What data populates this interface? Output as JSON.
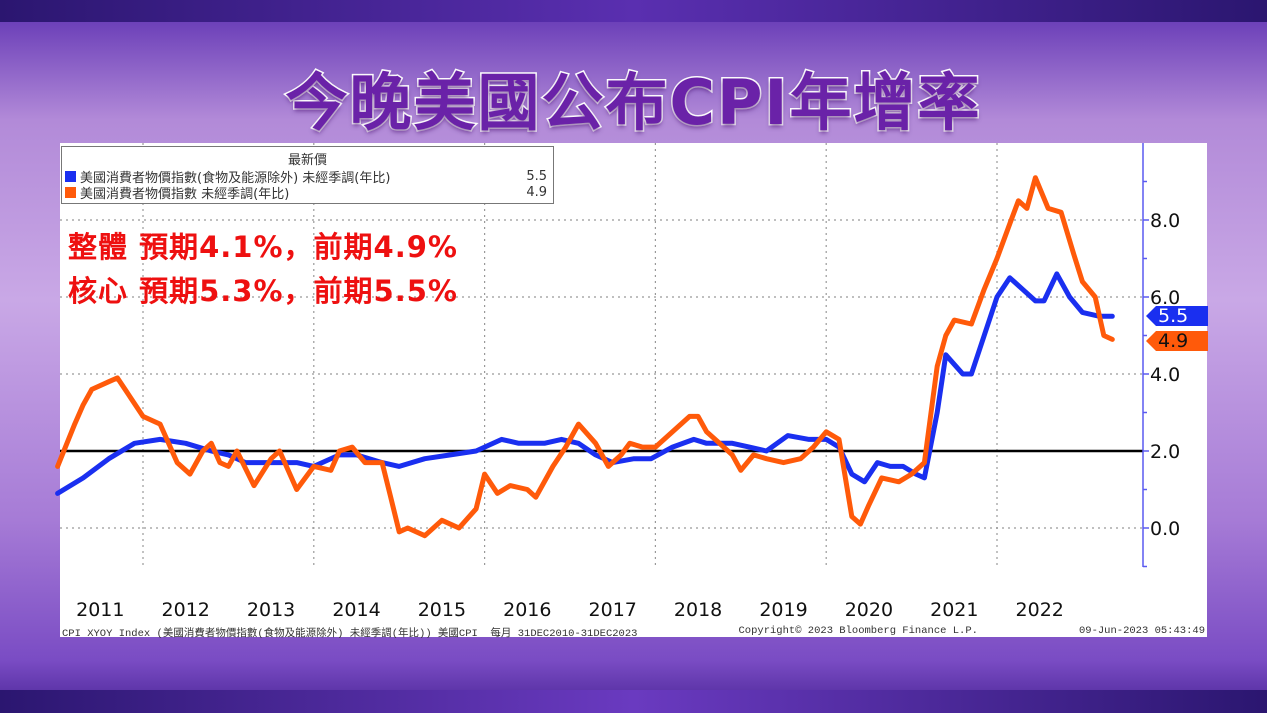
{
  "title": "今晚美國公布CPI年增率",
  "annotations": [
    "整體 預期4.1%，前期4.9%",
    "核心 預期5.3%，前期5.5%"
  ],
  "legend": {
    "header": "最新價",
    "items": [
      {
        "label": "美國消費者物價指數(食物及能源除外) 未經季調(年比)",
        "value": "5.5",
        "color": "#1a2ff0"
      },
      {
        "label": "美國消費者物價指數 未經季調(年比)",
        "value": "4.9",
        "color": "#ff5a0a"
      }
    ]
  },
  "footer": {
    "left": "CPI XYOY Index (美國消費者物價指數(食物及能源除外) 未經季調(年比)) 美國CPI  每月 31DEC2010-31DEC2023",
    "middle": "Copyright© 2023 Bloomberg Finance L.P.",
    "right": "09-Jun-2023 05:43:49"
  },
  "chart_data": {
    "type": "line",
    "ylim": [
      -1,
      10
    ],
    "xlim": [
      2011,
      2023.7
    ],
    "y_ticks": [
      "0.0",
      "2.0",
      "4.0",
      "6.0",
      "8.0"
    ],
    "y_tick_values": [
      0,
      2,
      4,
      6,
      8
    ],
    "x_tick_labels": [
      "2011",
      "2012",
      "2013",
      "2014",
      "2015",
      "2016",
      "2017",
      "2018",
      "2019",
      "2020",
      "2021",
      "2022"
    ],
    "reference_line": 2.0,
    "grid": true,
    "legend_position": "top-left",
    "series": [
      {
        "name": "美國消費者物價指數(食物及能源除外) 未經季調(年比)",
        "color": "#1a2ff0",
        "last_label": "5.5",
        "x": [
          2011.0,
          2011.3,
          2011.6,
          2011.9,
          2012.2,
          2012.5,
          2012.8,
          2013.0,
          2013.2,
          2013.5,
          2013.8,
          2014.0,
          2014.3,
          2014.5,
          2014.8,
          2015.0,
          2015.3,
          2015.6,
          2015.9,
          2016.2,
          2016.4,
          2016.7,
          2016.9,
          2017.1,
          2017.3,
          2017.5,
          2017.75,
          2017.95,
          2018.2,
          2018.45,
          2018.6,
          2018.9,
          2019.1,
          2019.3,
          2019.55,
          2019.8,
          2020.0,
          2020.15,
          2020.3,
          2020.45,
          2020.6,
          2020.75,
          2020.9,
          2021.05,
          2021.15,
          2021.3,
          2021.4,
          2021.6,
          2021.7,
          2021.85,
          2022.0,
          2022.15,
          2022.3,
          2022.45,
          2022.55,
          2022.7,
          2022.85,
          2023.0,
          2023.2,
          2023.35
        ],
        "y": [
          0.9,
          1.3,
          1.8,
          2.2,
          2.3,
          2.2,
          2.0,
          1.9,
          1.7,
          1.7,
          1.7,
          1.6,
          1.9,
          1.9,
          1.7,
          1.6,
          1.8,
          1.9,
          2.0,
          2.3,
          2.2,
          2.2,
          2.3,
          2.2,
          1.9,
          1.7,
          1.8,
          1.8,
          2.1,
          2.3,
          2.2,
          2.2,
          2.1,
          2.0,
          2.4,
          2.3,
          2.3,
          2.1,
          1.4,
          1.2,
          1.7,
          1.6,
          1.6,
          1.4,
          1.3,
          3.0,
          4.5,
          4.0,
          4.0,
          5.0,
          6.0,
          6.5,
          6.2,
          5.9,
          5.9,
          6.6,
          6.0,
          5.6,
          5.5,
          5.5
        ]
      },
      {
        "name": "美國消費者物價指數 未經季調(年比)",
        "color": "#ff5a0a",
        "last_label": "4.9",
        "x": [
          2011.0,
          2011.2,
          2011.3,
          2011.4,
          2011.6,
          2011.7,
          2011.85,
          2012.0,
          2012.2,
          2012.4,
          2012.55,
          2012.7,
          2012.8,
          2012.9,
          2013.0,
          2013.1,
          2013.3,
          2013.5,
          2013.6,
          2013.8,
          2014.0,
          2014.2,
          2014.3,
          2014.45,
          2014.6,
          2014.8,
          2014.9,
          2015.0,
          2015.1,
          2015.3,
          2015.5,
          2015.7,
          2015.9,
          2016.0,
          2016.15,
          2016.3,
          2016.5,
          2016.6,
          2016.8,
          2016.95,
          2017.1,
          2017.3,
          2017.45,
          2017.6,
          2017.7,
          2017.85,
          2018.0,
          2018.2,
          2018.4,
          2018.5,
          2018.6,
          2018.75,
          2018.9,
          2019.0,
          2019.15,
          2019.3,
          2019.5,
          2019.7,
          2019.85,
          2020.0,
          2020.15,
          2020.3,
          2020.4,
          2020.5,
          2020.65,
          2020.85,
          2021.0,
          2021.15,
          2021.3,
          2021.4,
          2021.5,
          2021.7,
          2021.85,
          2022.0,
          2022.15,
          2022.25,
          2022.35,
          2022.45,
          2022.6,
          2022.75,
          2022.9,
          2023.0,
          2023.15,
          2023.25,
          2023.35
        ],
        "y": [
          1.6,
          2.7,
          3.2,
          3.6,
          3.8,
          3.9,
          3.4,
          2.9,
          2.7,
          1.7,
          1.4,
          2.0,
          2.2,
          1.7,
          1.6,
          2.0,
          1.1,
          1.8,
          2.0,
          1.0,
          1.6,
          1.5,
          2.0,
          2.1,
          1.7,
          1.7,
          0.8,
          -0.1,
          0.0,
          -0.2,
          0.2,
          0.0,
          0.5,
          1.4,
          0.9,
          1.1,
          1.0,
          0.8,
          1.6,
          2.1,
          2.7,
          2.2,
          1.6,
          1.9,
          2.2,
          2.1,
          2.1,
          2.5,
          2.9,
          2.9,
          2.5,
          2.2,
          1.9,
          1.5,
          1.9,
          1.8,
          1.7,
          1.8,
          2.1,
          2.5,
          2.3,
          0.3,
          0.1,
          0.6,
          1.3,
          1.2,
          1.4,
          1.7,
          4.2,
          5.0,
          5.4,
          5.3,
          6.2,
          7.0,
          7.9,
          8.5,
          8.3,
          9.1,
          8.3,
          8.2,
          7.1,
          6.4,
          6.0,
          5.0,
          4.9
        ]
      }
    ]
  }
}
